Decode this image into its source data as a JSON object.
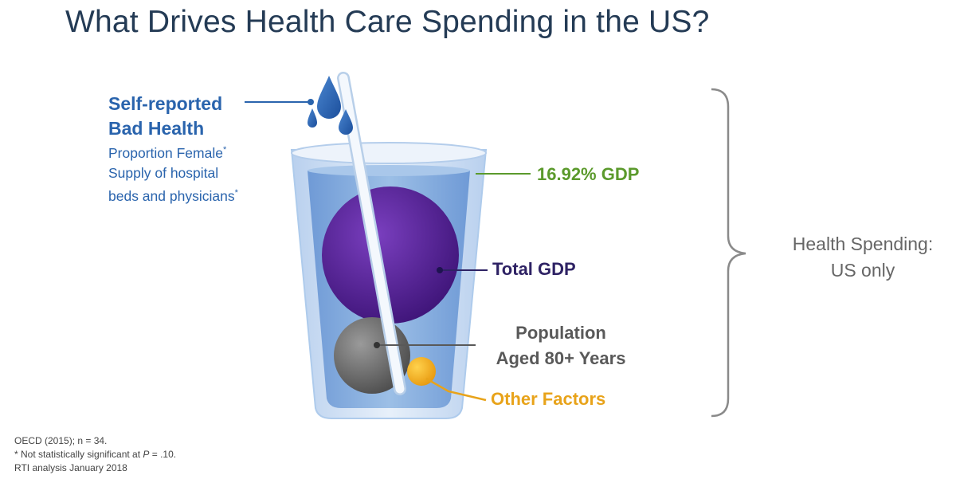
{
  "title": "What Drives Health Care Spending in the US?",
  "self_reported": {
    "title_line1": "Self-reported",
    "title_line2": "Bad Health",
    "sub_line1": "Proportion Female",
    "sub_line2": "Supply of hospital",
    "sub_line3": "beds and physicians",
    "asterisk": "*"
  },
  "gdp_label": "16.92% GDP",
  "total_gdp_label": "Total GDP",
  "population": {
    "line1": "Population",
    "line2": "Aged 80+ Years"
  },
  "other_factors_label": "Other Factors",
  "health_spending": {
    "line1": "Health Spending:",
    "line2": "US only"
  },
  "footnotes": {
    "line1": "OECD (2015); n = 34.",
    "line2_prefix": "* Not statistically significant at ",
    "line2_var": "P",
    "line2_suffix": " = .10.",
    "line3": "RTI analysis January 2018"
  },
  "colors": {
    "title": "#243b55",
    "blue_text": "#2a64ad",
    "green": "#5b9a2c",
    "purple": "#4a1e8a",
    "gray": "#595959",
    "orange": "#e8a31a",
    "water": "#8fb5e0",
    "glass": "#c9dbf1"
  }
}
